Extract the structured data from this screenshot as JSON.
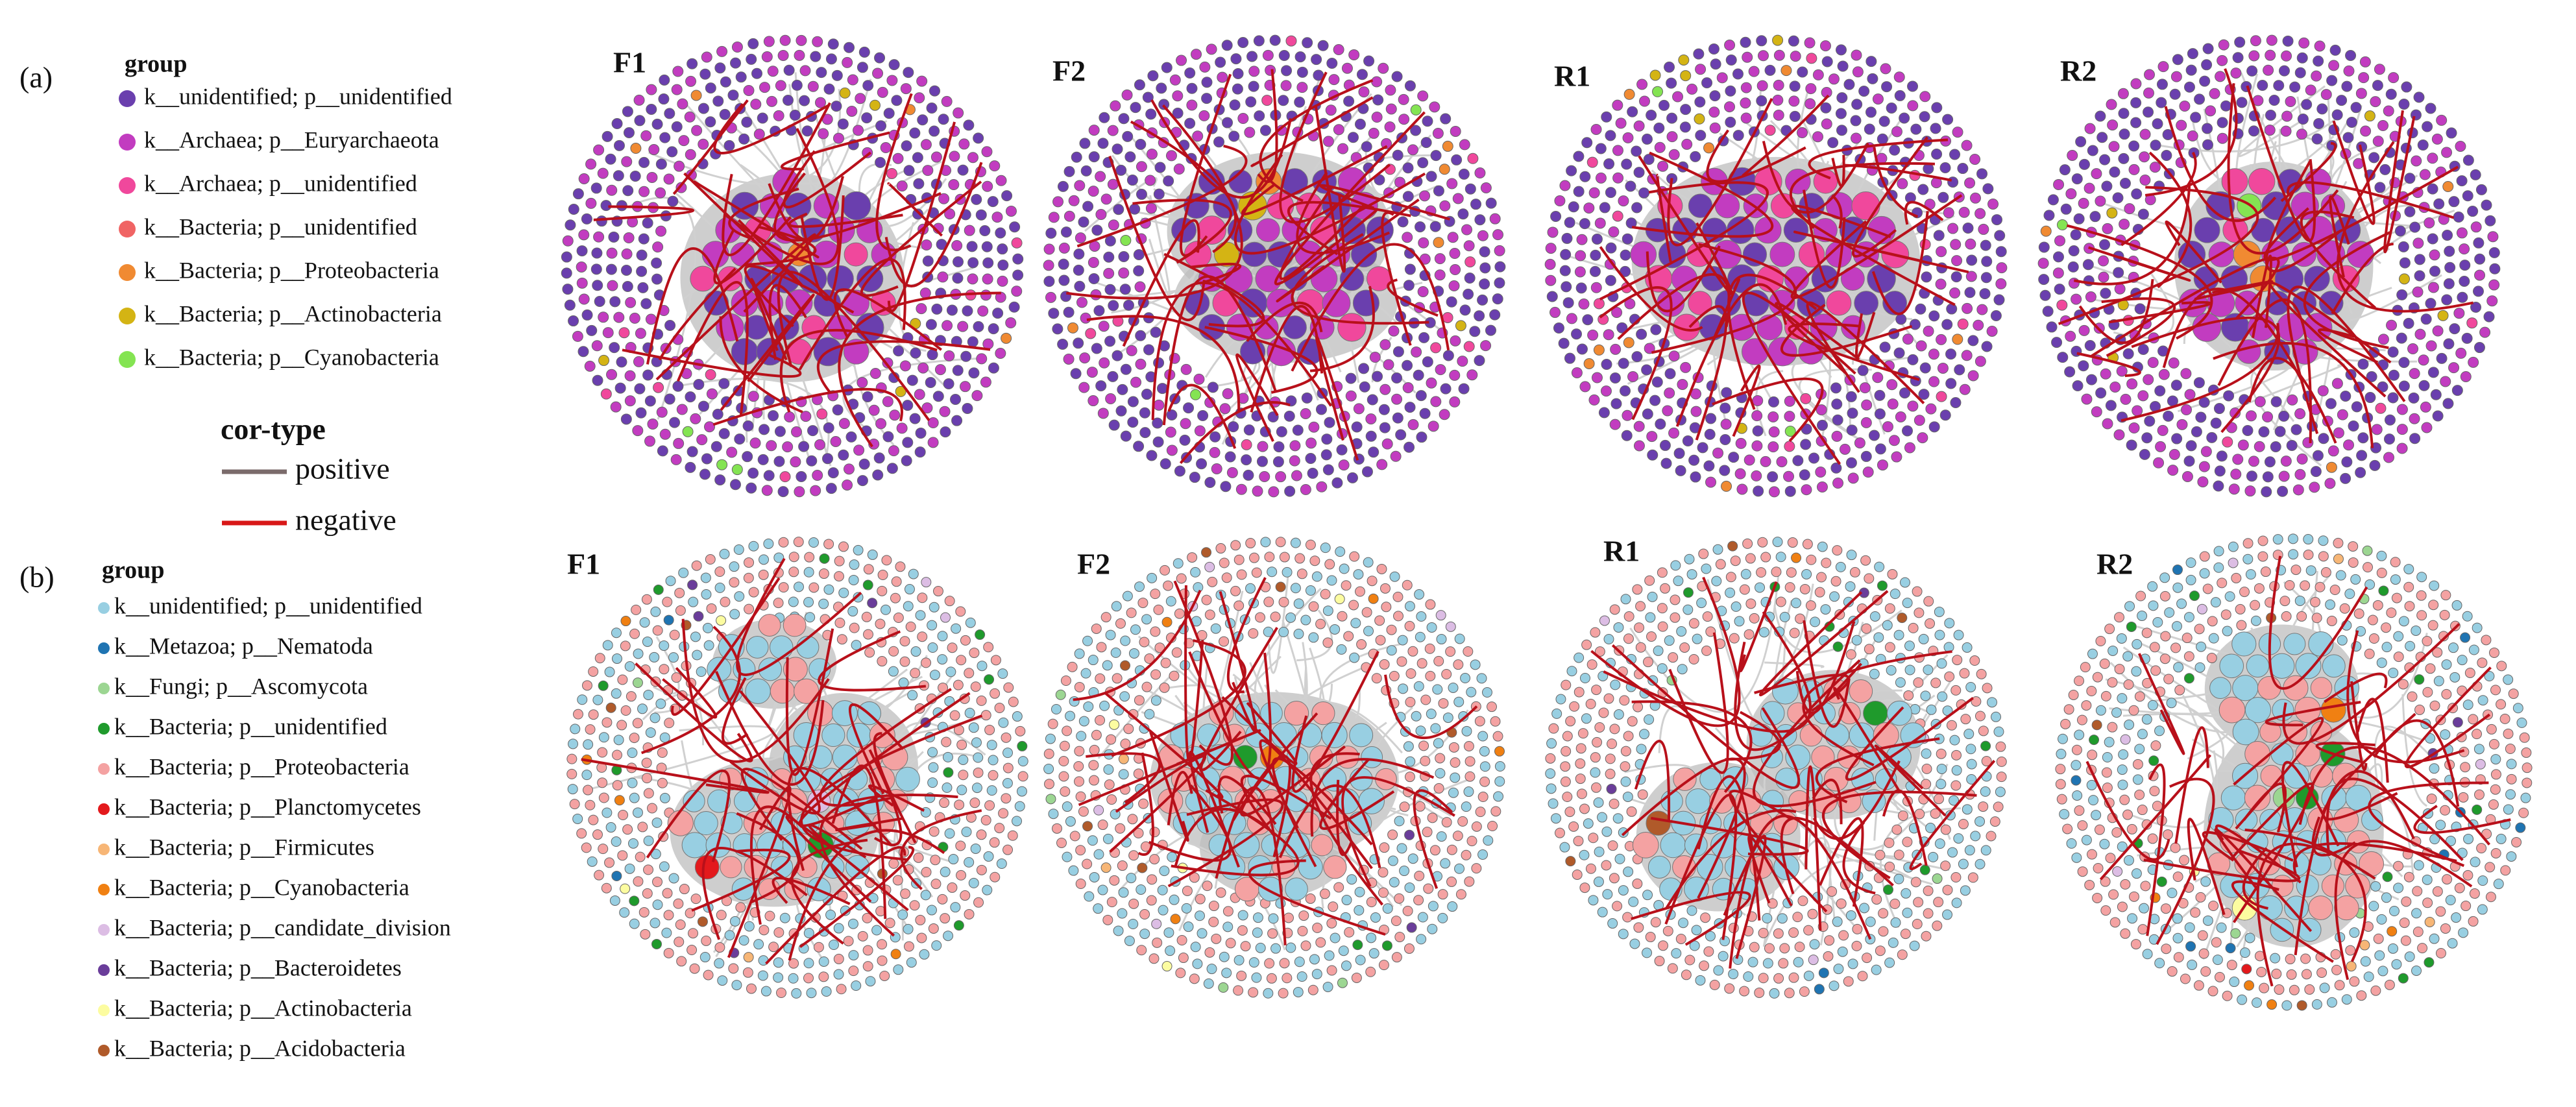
{
  "panel_a": {
    "label": "(a)",
    "legend": {
      "title": "group",
      "items": [
        {
          "text": "k__unidentified; p__unidentified",
          "color": "#6a3fae"
        },
        {
          "text": "k__Archaea; p__Euryarchaeota",
          "color": "#c23cc0"
        },
        {
          "text": "k__Archaea; p__unidentified",
          "color": "#f0489c"
        },
        {
          "text": "k__Bacteria; p__unidentified",
          "color": "#f06464"
        },
        {
          "text": "k__Bacteria; p__Proteobacteria",
          "color": "#f08a32"
        },
        {
          "text": "k__Bacteria; p__Actinobacteria",
          "color": "#d4b414"
        },
        {
          "text": "k__Bacteria; p__Cyanobacteria",
          "color": "#84e452"
        }
      ]
    },
    "cor_type": {
      "title": "cor-type",
      "items": [
        {
          "text": "positive",
          "color": "#7b6b6b"
        },
        {
          "text": "negative",
          "color": "#d81818"
        }
      ]
    },
    "networks": [
      "F1",
      "F2",
      "R1",
      "R2"
    ]
  },
  "panel_b": {
    "label": "(b)",
    "legend": {
      "title": "group",
      "items": [
        {
          "text": "k__unidentified; p__unidentified",
          "color": "#98cfe2"
        },
        {
          "text": "k__Metazoa; p__Nematoda",
          "color": "#1f74b2"
        },
        {
          "text": "k__Fungi; p__Ascomycota",
          "color": "#9cd692"
        },
        {
          "text": "k__Bacteria; p__unidentified",
          "color": "#1f9a2c"
        },
        {
          "text": "k__Bacteria; p__Proteobacteria",
          "color": "#f4a2a2"
        },
        {
          "text": "k__Bacteria; p__Planctomycetes",
          "color": "#e3191c"
        },
        {
          "text": "k__Bacteria; p__Firmicutes",
          "color": "#f7b676"
        },
        {
          "text": "k__Bacteria; p__Cyanobacteria",
          "color": "#f08012"
        },
        {
          "text": "k__Bacteria; p__candidate_division",
          "color": "#dcbde4"
        },
        {
          "text": "k__Bacteria; p__Bacteroidetes",
          "color": "#6a3d9a"
        },
        {
          "text": "k__Bacteria; p__Actinobacteria",
          "color": "#fcfca0"
        },
        {
          "text": "k__Bacteria; p__Acidobacteria",
          "color": "#b05a2a"
        }
      ]
    },
    "networks": [
      "F1",
      "F2",
      "R1",
      "R2"
    ]
  }
}
